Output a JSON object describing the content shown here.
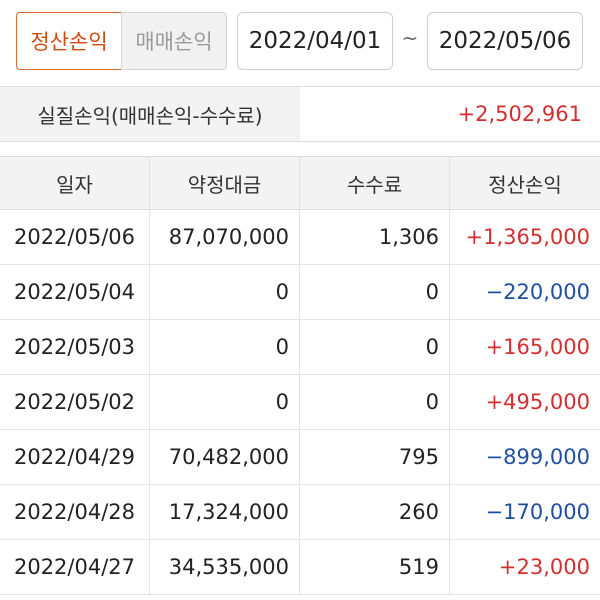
{
  "toolbar": {
    "tab_settlement": "정산손익",
    "tab_trade": "매매손익",
    "date_from": "2022/04/01",
    "tilde": "~",
    "date_to": "2022/05/06"
  },
  "summary": {
    "label": "실질손익(매매손익-수수료)",
    "value": "+2,502,961"
  },
  "table": {
    "headers": [
      "일자",
      "약정대금",
      "수수료",
      "정산손익"
    ],
    "rows": [
      {
        "date": "2022/05/06",
        "amount": "87,070,000",
        "fee": "1,306",
        "pl": "+1,365,000"
      },
      {
        "date": "2022/05/04",
        "amount": "0",
        "fee": "0",
        "pl": "−220,000"
      },
      {
        "date": "2022/05/03",
        "amount": "0",
        "fee": "0",
        "pl": "+165,000"
      },
      {
        "date": "2022/05/02",
        "amount": "0",
        "fee": "0",
        "pl": "+495,000"
      },
      {
        "date": "2022/04/29",
        "amount": "70,482,000",
        "fee": "795",
        "pl": "−899,000"
      },
      {
        "date": "2022/04/28",
        "amount": "17,324,000",
        "fee": "260",
        "pl": "−170,000"
      },
      {
        "date": "2022/04/27",
        "amount": "34,535,000",
        "fee": "519",
        "pl": "+23,000"
      }
    ]
  },
  "colors": {
    "accent": "#d24b0f",
    "positive": "#d32f2f",
    "negative": "#1f4fa0"
  }
}
